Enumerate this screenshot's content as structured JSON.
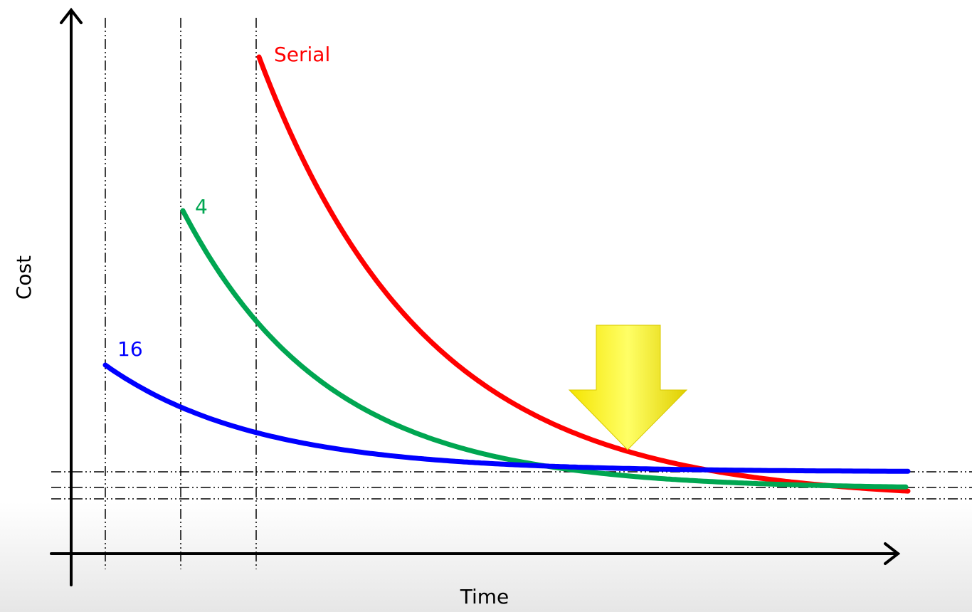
{
  "axes": {
    "y_label": "Cost",
    "x_label": "Time"
  },
  "curves": [
    {
      "label": "Serial"
    },
    {
      "label": "4"
    },
    {
      "label": "16"
    }
  ]
}
